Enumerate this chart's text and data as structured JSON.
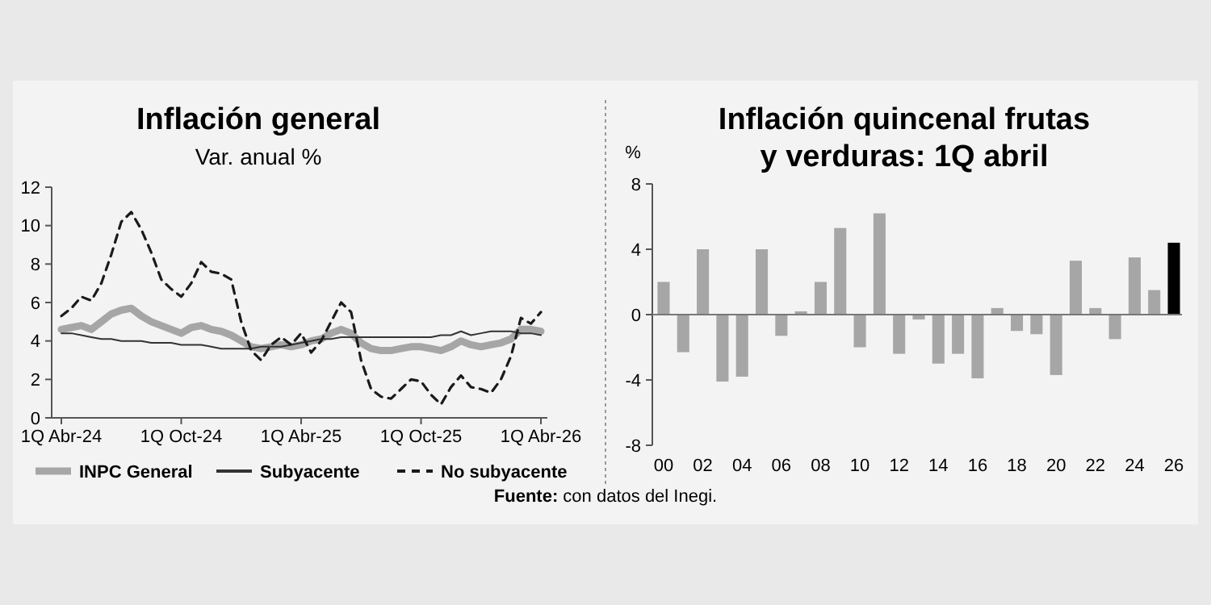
{
  "chart_data": [
    {
      "type": "line",
      "title": "Inflación general",
      "subtitle": "Var. anual %",
      "categories": [
        "1Q Abr-24",
        null,
        null,
        null,
        null,
        null,
        null,
        null,
        null,
        null,
        null,
        null,
        "1Q Oct-24",
        null,
        null,
        null,
        null,
        null,
        null,
        null,
        null,
        null,
        null,
        null,
        "1Q Abr-25",
        null,
        null,
        null,
        null,
        null,
        null,
        null,
        null,
        null,
        null,
        null,
        "1Q Oct-25",
        null,
        null,
        null,
        null,
        null,
        null,
        null,
        null,
        null,
        null,
        null,
        "1Q Abr-26"
      ],
      "series": [
        {
          "name": "INPC General",
          "color": "#a6a6a6",
          "line_style": "solid",
          "values": [
            4.6,
            4.7,
            4.8,
            4.6,
            5.0,
            5.4,
            5.6,
            5.7,
            5.3,
            5.0,
            4.8,
            4.6,
            4.4,
            4.7,
            4.8,
            4.6,
            4.5,
            4.3,
            4.0,
            3.7,
            3.6,
            3.7,
            3.8,
            3.7,
            3.8,
            4.0,
            4.1,
            4.4,
            4.6,
            4.4,
            3.9,
            3.6,
            3.5,
            3.5,
            3.6,
            3.7,
            3.7,
            3.6,
            3.5,
            3.7,
            4.0,
            3.8,
            3.7,
            3.8,
            3.9,
            4.1,
            4.6,
            4.6,
            4.5
          ]
        },
        {
          "name": "Subyacente",
          "color": "#333333",
          "line_style": "solid",
          "values": [
            4.4,
            4.4,
            4.3,
            4.2,
            4.1,
            4.1,
            4.0,
            4.0,
            4.0,
            3.9,
            3.9,
            3.9,
            3.8,
            3.8,
            3.8,
            3.7,
            3.6,
            3.6,
            3.6,
            3.6,
            3.7,
            3.7,
            3.7,
            3.8,
            3.9,
            4.0,
            4.1,
            4.1,
            4.2,
            4.2,
            4.2,
            4.2,
            4.2,
            4.2,
            4.2,
            4.2,
            4.2,
            4.2,
            4.3,
            4.3,
            4.5,
            4.3,
            4.4,
            4.5,
            4.5,
            4.5,
            4.4,
            4.4,
            4.3
          ]
        },
        {
          "name": "No subyacente",
          "color": "#1a1a1a",
          "line_style": "dashed",
          "values": [
            5.3,
            5.7,
            6.3,
            6.1,
            7.0,
            8.5,
            10.2,
            10.7,
            9.8,
            8.6,
            7.2,
            6.7,
            6.3,
            7.0,
            8.1,
            7.6,
            7.5,
            7.2,
            5.0,
            3.5,
            3.0,
            3.8,
            4.2,
            3.8,
            4.4,
            3.4,
            4.0,
            5.0,
            6.0,
            5.5,
            3.0,
            1.5,
            1.1,
            1.0,
            1.5,
            2.0,
            1.9,
            1.2,
            0.7,
            1.6,
            2.2,
            1.6,
            1.5,
            1.3,
            2.0,
            3.2,
            5.2,
            4.9,
            5.5
          ]
        }
      ],
      "ylim": [
        0,
        12
      ],
      "yticks": [
        0,
        2,
        4,
        6,
        8,
        10,
        12
      ],
      "grid": false,
      "legend": "bottom",
      "marker": "none",
      "annotations": [
        "Fuente: con datos del Inegi."
      ]
    },
    {
      "type": "bar",
      "title": "Inflación quincenal frutas\ny verduras: 1Q abril",
      "ylabel": "%",
      "categories": [
        "00",
        null,
        "02",
        null,
        "04",
        null,
        "06",
        null,
        "08",
        null,
        "10",
        null,
        "12",
        null,
        "14",
        null,
        "16",
        null,
        "18",
        null,
        "20",
        null,
        "22",
        null,
        "24",
        null,
        "26"
      ],
      "values": [
        2.0,
        -2.3,
        4.0,
        -4.1,
        -3.8,
        4.0,
        -1.3,
        0.2,
        2.0,
        5.3,
        -2.0,
        6.2,
        -2.4,
        -0.3,
        -3.0,
        -2.4,
        -3.9,
        0.4,
        -1.0,
        -1.2,
        -3.7,
        3.3,
        0.4,
        -1.5,
        3.5,
        1.5,
        4.4
      ],
      "colors": [
        "#a6a6a6",
        "#a6a6a6",
        "#a6a6a6",
        "#a6a6a6",
        "#a6a6a6",
        "#a6a6a6",
        "#a6a6a6",
        "#a6a6a6",
        "#a6a6a6",
        "#a6a6a6",
        "#a6a6a6",
        "#a6a6a6",
        "#a6a6a6",
        "#a6a6a6",
        "#a6a6a6",
        "#a6a6a6",
        "#a6a6a6",
        "#a6a6a6",
        "#a6a6a6",
        "#a6a6a6",
        "#a6a6a6",
        "#a6a6a6",
        "#a6a6a6",
        "#a6a6a6",
        "#a6a6a6",
        "#a6a6a6",
        "#000000"
      ],
      "ylim": [
        -8,
        8
      ],
      "yticks": [
        -8,
        -4,
        0,
        4,
        8
      ],
      "grid": false,
      "ref_lines": [
        {
          "axis": "y",
          "value": 0,
          "color": "#777777"
        }
      ]
    }
  ]
}
